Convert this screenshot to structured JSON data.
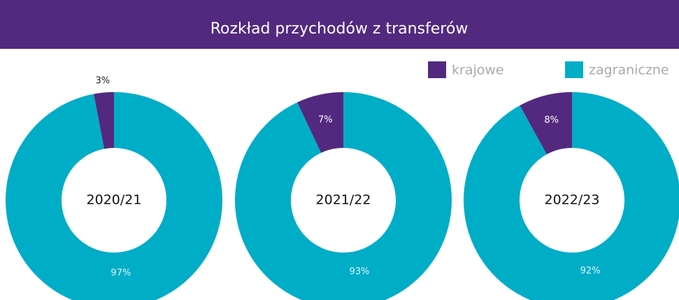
{
  "title": "Rozkład przychodów z transferów",
  "chart_data": [
    {
      "type": "donut",
      "title": "2020/21",
      "categories": [
        "krajowe",
        "zagraniczne"
      ],
      "values": [
        3,
        97
      ],
      "value_labels": [
        "3%",
        "97%"
      ],
      "colors": [
        "#52297f",
        "#00adc6"
      ]
    },
    {
      "type": "donut",
      "title": "2021/22",
      "categories": [
        "krajowe",
        "zagraniczne"
      ],
      "values": [
        7,
        93
      ],
      "value_labels": [
        "7%",
        "93%"
      ],
      "colors": [
        "#52297f",
        "#00adc6"
      ]
    },
    {
      "type": "donut",
      "title": "2022/23",
      "categories": [
        "krajowe",
        "zagraniczne"
      ],
      "values": [
        8,
        92
      ],
      "value_labels": [
        "8%",
        "92%"
      ],
      "colors": [
        "#52297f",
        "#00adc6"
      ]
    }
  ]
}
